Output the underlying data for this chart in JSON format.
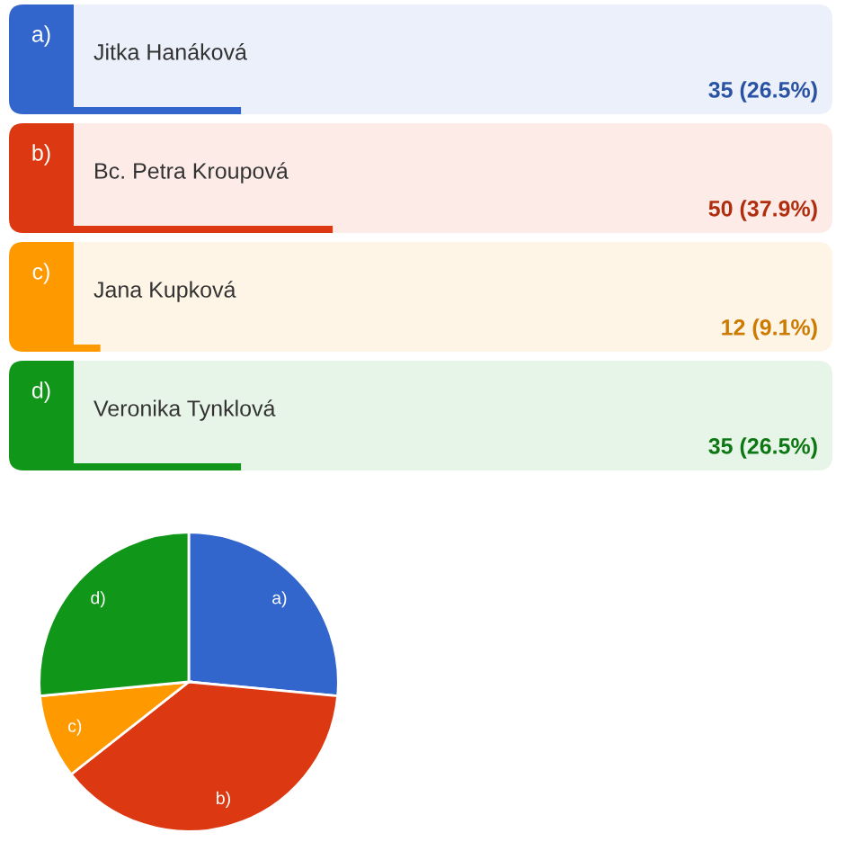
{
  "chart_data": [
    {
      "type": "bar",
      "orientation": "horizontal",
      "categories": [
        "Jitka Hanáková",
        "Bc. Petra Kroupová",
        "Jana Kupková",
        "Veronika Tynklová"
      ],
      "values": [
        35,
        50,
        12,
        35
      ],
      "colors": [
        "#3366cc",
        "#dc3912",
        "#ff9900",
        "#109618"
      ],
      "value_labels": [
        "35 (26.5%)",
        "50 (37.9%)",
        "12 (9.1%)",
        "35 (26.5%)"
      ],
      "annotations": [
        "a)",
        "b)",
        "c)",
        "d)"
      ],
      "tick_labels": "y"
    },
    {
      "type": "pie",
      "categories": [
        "a)",
        "b)",
        "c)",
        "d)"
      ],
      "values": [
        26.5,
        37.9,
        9.1,
        26.5
      ],
      "colors": [
        "#3366cc",
        "#dc3912",
        "#ff9900",
        "#109618"
      ]
    }
  ]
}
